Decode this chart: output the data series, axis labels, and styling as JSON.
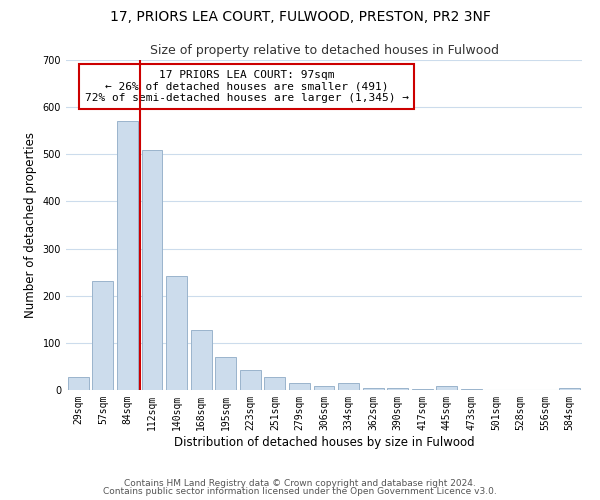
{
  "title": "17, PRIORS LEA COURT, FULWOOD, PRESTON, PR2 3NF",
  "subtitle": "Size of property relative to detached houses in Fulwood",
  "xlabel": "Distribution of detached houses by size in Fulwood",
  "ylabel": "Number of detached properties",
  "bar_labels": [
    "29sqm",
    "57sqm",
    "84sqm",
    "112sqm",
    "140sqm",
    "168sqm",
    "195sqm",
    "223sqm",
    "251sqm",
    "279sqm",
    "306sqm",
    "334sqm",
    "362sqm",
    "390sqm",
    "417sqm",
    "445sqm",
    "473sqm",
    "501sqm",
    "528sqm",
    "556sqm",
    "584sqm"
  ],
  "bar_values": [
    28,
    232,
    570,
    510,
    242,
    127,
    70,
    42,
    27,
    14,
    9,
    14,
    5,
    4,
    3,
    9,
    2,
    0,
    0,
    0,
    5
  ],
  "bar_color": "#ccdcec",
  "bar_edge_color": "#9ab4cc",
  "marker_line_color": "#cc0000",
  "annotation_text": "17 PRIORS LEA COURT: 97sqm\n← 26% of detached houses are smaller (491)\n72% of semi-detached houses are larger (1,345) →",
  "annotation_box_facecolor": "#ffffff",
  "annotation_box_edgecolor": "#cc0000",
  "ylim": [
    0,
    700
  ],
  "yticks": [
    0,
    100,
    200,
    300,
    400,
    500,
    600,
    700
  ],
  "footer_line1": "Contains HM Land Registry data © Crown copyright and database right 2024.",
  "footer_line2": "Contains public sector information licensed under the Open Government Licence v3.0.",
  "background_color": "#ffffff",
  "grid_color": "#ccdcec",
  "title_fontsize": 10,
  "subtitle_fontsize": 9,
  "axis_label_fontsize": 8.5,
  "tick_fontsize": 7,
  "annotation_fontsize": 8,
  "footer_fontsize": 6.5
}
